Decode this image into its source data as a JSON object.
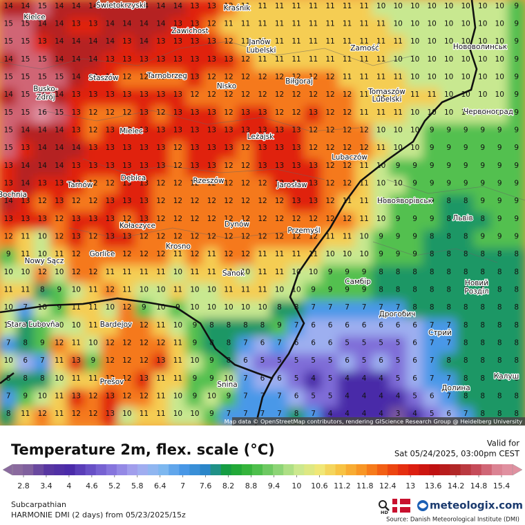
{
  "map": {
    "grid": [
      [
        14,
        14,
        15,
        14,
        14,
        14,
        14,
        14,
        14,
        14,
        14,
        13,
        13,
        12,
        11,
        11,
        11,
        11,
        11,
        11,
        11,
        11,
        10,
        10,
        10,
        10,
        10,
        10,
        10,
        10,
        9
      ],
      [
        15,
        15,
        14,
        14,
        13,
        13,
        14,
        14,
        14,
        14,
        13,
        13,
        12,
        11,
        11,
        11,
        11,
        11,
        11,
        11,
        11,
        11,
        11,
        10,
        10,
        10,
        10,
        10,
        10,
        10,
        9
      ],
      [
        15,
        15,
        13,
        14,
        14,
        14,
        14,
        13,
        14,
        13,
        13,
        13,
        13,
        12,
        11,
        11,
        11,
        11,
        11,
        11,
        11,
        11,
        11,
        11,
        10,
        10,
        10,
        10,
        10,
        10,
        9
      ],
      [
        14,
        15,
        15,
        14,
        14,
        14,
        13,
        13,
        13,
        13,
        13,
        13,
        13,
        13,
        12,
        11,
        11,
        11,
        11,
        11,
        11,
        11,
        11,
        10,
        10,
        10,
        10,
        10,
        10,
        10,
        9
      ],
      [
        15,
        15,
        15,
        15,
        14,
        13,
        13,
        12,
        12,
        12,
        12,
        13,
        12,
        12,
        12,
        12,
        12,
        12,
        12,
        12,
        11,
        11,
        11,
        11,
        10,
        10,
        10,
        10,
        10,
        10,
        9
      ],
      [
        14,
        15,
        15,
        14,
        13,
        13,
        13,
        13,
        13,
        13,
        13,
        12,
        12,
        12,
        12,
        12,
        12,
        12,
        12,
        12,
        12,
        11,
        11,
        11,
        11,
        11,
        10,
        10,
        10,
        10,
        9
      ],
      [
        15,
        15,
        16,
        15,
        13,
        12,
        12,
        12,
        13,
        12,
        13,
        13,
        13,
        12,
        13,
        13,
        12,
        12,
        13,
        12,
        12,
        11,
        11,
        11,
        10,
        10,
        10,
        10,
        10,
        10,
        9
      ],
      [
        15,
        14,
        14,
        14,
        13,
        12,
        13,
        13,
        13,
        13,
        13,
        13,
        13,
        13,
        13,
        13,
        13,
        13,
        12,
        12,
        12,
        12,
        10,
        10,
        10,
        9,
        9,
        9,
        9,
        9,
        9
      ],
      [
        15,
        13,
        14,
        14,
        14,
        13,
        13,
        13,
        13,
        13,
        12,
        13,
        13,
        13,
        12,
        13,
        13,
        13,
        12,
        12,
        12,
        12,
        11,
        10,
        10,
        9,
        9,
        9,
        9,
        9,
        9
      ],
      [
        13,
        14,
        14,
        14,
        13,
        13,
        13,
        13,
        13,
        13,
        12,
        13,
        13,
        12,
        12,
        13,
        13,
        13,
        13,
        12,
        12,
        11,
        10,
        9,
        9,
        9,
        9,
        9,
        9,
        9,
        9
      ],
      [
        13,
        14,
        13,
        13,
        13,
        12,
        12,
        13,
        13,
        12,
        12,
        12,
        12,
        12,
        12,
        12,
        13,
        13,
        13,
        12,
        12,
        11,
        10,
        10,
        9,
        9,
        9,
        9,
        9,
        9,
        9
      ],
      [
        14,
        13,
        12,
        13,
        12,
        12,
        13,
        13,
        13,
        12,
        12,
        12,
        12,
        12,
        12,
        12,
        12,
        13,
        13,
        12,
        11,
        11,
        10,
        9,
        9,
        9,
        8,
        8,
        9,
        9,
        9
      ],
      [
        13,
        13,
        13,
        12,
        13,
        13,
        13,
        12,
        13,
        12,
        12,
        12,
        12,
        12,
        12,
        12,
        12,
        12,
        12,
        12,
        12,
        11,
        10,
        9,
        9,
        9,
        8,
        8,
        8,
        9,
        9
      ],
      [
        12,
        11,
        10,
        12,
        13,
        12,
        13,
        13,
        12,
        12,
        12,
        12,
        12,
        12,
        12,
        12,
        12,
        12,
        12,
        11,
        11,
        10,
        9,
        9,
        9,
        8,
        8,
        8,
        9,
        9,
        9
      ],
      [
        9,
        11,
        10,
        11,
        12,
        12,
        12,
        12,
        12,
        12,
        11,
        12,
        11,
        12,
        12,
        11,
        11,
        11,
        11,
        10,
        10,
        10,
        9,
        9,
        9,
        8,
        8,
        8,
        8,
        8,
        8
      ],
      [
        10,
        10,
        12,
        10,
        12,
        12,
        11,
        11,
        11,
        11,
        10,
        11,
        11,
        11,
        10,
        11,
        11,
        10,
        10,
        9,
        9,
        9,
        8,
        8,
        8,
        8,
        8,
        8,
        8,
        8,
        8
      ],
      [
        11,
        11,
        8,
        9,
        10,
        11,
        12,
        11,
        10,
        10,
        11,
        10,
        10,
        11,
        11,
        11,
        10,
        10,
        9,
        9,
        9,
        9,
        8,
        8,
        8,
        8,
        8,
        8,
        8,
        8,
        8
      ],
      [
        10,
        7,
        10,
        9,
        11,
        11,
        10,
        12,
        9,
        10,
        9,
        10,
        10,
        10,
        10,
        10,
        8,
        8,
        7,
        7,
        7,
        7,
        7,
        7,
        8,
        8,
        8,
        8,
        8,
        8,
        8
      ],
      [
        10,
        8,
        9,
        10,
        10,
        11,
        11,
        12,
        12,
        11,
        10,
        9,
        8,
        8,
        8,
        8,
        9,
        7,
        6,
        6,
        6,
        6,
        6,
        6,
        6,
        7,
        7,
        8,
        8,
        8,
        8
      ],
      [
        7,
        8,
        9,
        12,
        11,
        10,
        12,
        12,
        12,
        12,
        11,
        9,
        8,
        8,
        7,
        6,
        7,
        6,
        6,
        6,
        5,
        5,
        5,
        5,
        6,
        7,
        7,
        8,
        8,
        8,
        8
      ],
      [
        10,
        6,
        7,
        11,
        13,
        9,
        12,
        12,
        12,
        13,
        11,
        10,
        9,
        8,
        6,
        5,
        5,
        5,
        5,
        5,
        6,
        5,
        6,
        5,
        6,
        7,
        8,
        8,
        8,
        8,
        8
      ],
      [
        8,
        8,
        8,
        10,
        11,
        11,
        12,
        12,
        13,
        11,
        11,
        9,
        9,
        10,
        7,
        6,
        6,
        5,
        4,
        5,
        4,
        4,
        4,
        5,
        6,
        7,
        7,
        8,
        8,
        8,
        8
      ],
      [
        7,
        9,
        10,
        11,
        13,
        12,
        13,
        12,
        12,
        11,
        10,
        9,
        10,
        9,
        7,
        7,
        7,
        6,
        5,
        5,
        4,
        4,
        4,
        4,
        5,
        6,
        7,
        8,
        8,
        8,
        8
      ],
      [
        8,
        11,
        12,
        11,
        12,
        12,
        13,
        10,
        11,
        11,
        10,
        10,
        9,
        7,
        7,
        7,
        7,
        8,
        7,
        4,
        4,
        4,
        4,
        3,
        4,
        5,
        6,
        7,
        8,
        8,
        8
      ]
    ],
    "cities": [
      "Świetokrzyski",
      "Kielce",
      "Kraśnik",
      "Zawichost",
      "Janów",
      "Lubelski",
      "Zamość",
      "Нововолинськ",
      "Staszów",
      "Tarnobrzeg",
      "Nisko",
      "Biłgoraj",
      "Busko-",
      "Zdrój",
      "Tomaszów",
      "Lubelski",
      "Червоноград",
      "Mielec",
      "Leżajsk",
      "Lubaczów",
      "Tarnów",
      "Dębica",
      "Rzeszów",
      "Jarosław",
      "Новояворівськ",
      "Bochnia",
      "Львів",
      "Kołaczyce",
      "Dynów",
      "Przemyśl",
      "Gorlice",
      "Krosno",
      "Nowy Sącz",
      "Sanok",
      "Самбір",
      "Новий",
      "Розділ",
      "Stara Ľubovňa",
      "Bardejov",
      "Дрогобич",
      "Стрий",
      "Prešov",
      "Snina",
      "Долина",
      "Калуш"
    ],
    "attribution": "Map data © OpenStreetMap contributors, rendering GIScience Research Group @ Heidelberg University"
  },
  "legend": {
    "title": "Temperature 2m, flex. scale (°C)",
    "valid_label": "Valid for",
    "valid_time": "Sat 05/24/2025, 03:00pm CEST",
    "ticks": [
      2.8,
      3.4,
      4,
      4.6,
      5.2,
      5.8,
      6.4,
      7,
      7.6,
      8.2,
      8.8,
      9.4,
      10,
      10.6,
      11.2,
      11.8,
      12.4,
      13,
      13.6,
      14.2,
      14.8,
      15.4
    ],
    "colors": [
      "#8a6a9e",
      "#5a38a0",
      "#4a2aa8",
      "#6a52c8",
      "#8a7ae0",
      "#a8a8f0",
      "#86bcf0",
      "#4a98e8",
      "#2a86c8",
      "#14a034",
      "#3cb83e",
      "#80d070",
      "#c8e890",
      "#f0e878",
      "#f8c040",
      "#f88e20",
      "#f05010",
      "#e02010",
      "#c01010",
      "#b02828",
      "#c85060",
      "#e090a0"
    ]
  },
  "footer": {
    "region": "Subcarpathian",
    "model": "HARMONIE DMI (2 days)  from  05/23/2025/15z",
    "hd": "HD",
    "brand": "meteologix.com",
    "source": "Source: Danish Meteorological Institute (DMI)"
  }
}
